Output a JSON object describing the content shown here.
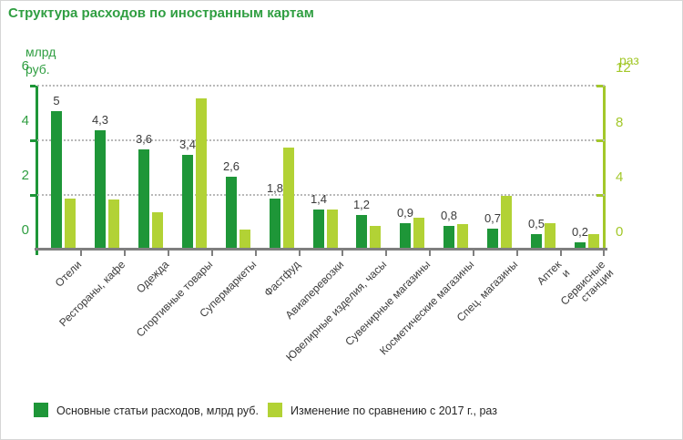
{
  "title": "Структура расходов по иностранным картам",
  "colors": {
    "title": "#2f9e41",
    "left_axis": "#1e9638",
    "right_axis": "#a3c82a",
    "dark_bar": "#1e9638",
    "light_bar": "#b2d235",
    "grid": "#b9b9b9",
    "x_axis": "#7f7f7f",
    "value_label": "#3a3a3a"
  },
  "axes": {
    "left": {
      "unit": "млрд\nруб.",
      "ticks": [
        6,
        4,
        2,
        0
      ]
    },
    "right": {
      "unit": "раз",
      "ticks": [
        12,
        8,
        4,
        0
      ]
    }
  },
  "legend": [
    {
      "label": "Основные статьи расходов, млрд руб.",
      "color": "#1e9638"
    },
    {
      "label": "Изменение по сравнению с 2017 г., раз",
      "color": "#b2d235"
    }
  ],
  "chart_data": {
    "type": "bar",
    "title": "Структура расходов по иностранным картам",
    "categories": [
      "Отели",
      "Рестораны, кафе",
      "Одежда",
      "Спортивные товары",
      "Супермаркеты",
      "Фастфуд",
      "Авиаперевозки",
      "Ювелирные изделия, часы",
      "Сувенирные магазины",
      "Косметические магазины",
      "Спец. магазины",
      "Аптек\nи",
      "Сервисные\nстанции"
    ],
    "series": [
      {
        "name": "Основные статьи расходов, млрд руб.",
        "axis": "left",
        "values": [
          5,
          4.3,
          3.6,
          3.4,
          2.6,
          1.8,
          1.4,
          1.2,
          0.9,
          0.8,
          0.7,
          0.5,
          0.2
        ],
        "value_labels": [
          "5",
          "4,3",
          "3,6",
          "3,4",
          "2,6",
          "1,8",
          "1,4",
          "1,2",
          "0,9",
          "0,8",
          "0,7",
          "0,5",
          "0,2"
        ]
      },
      {
        "name": "Изменение по сравнению с 2017 г., раз",
        "axis": "right",
        "values": [
          3.6,
          3.5,
          2.6,
          10.9,
          1.3,
          7.3,
          2.8,
          1.6,
          2.2,
          1.7,
          3.8,
          1.8,
          1.0
        ]
      }
    ],
    "left_ylabel": "млрд руб.",
    "right_ylabel": "раз",
    "left_ylim": [
      0,
      6
    ],
    "right_ylim": [
      0,
      12
    ],
    "grid": true,
    "legend_position": "bottom"
  }
}
